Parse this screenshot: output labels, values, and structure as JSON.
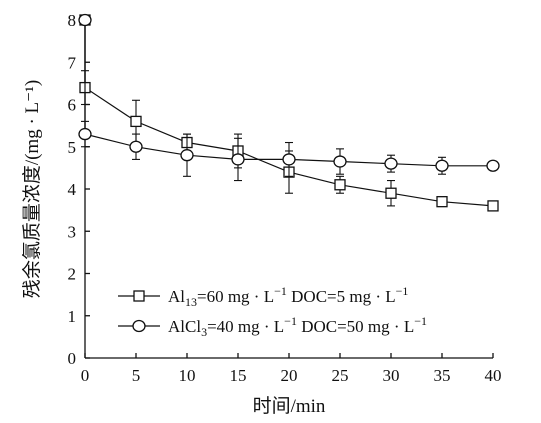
{
  "chart_data": {
    "type": "line",
    "xlabel": "时间/min",
    "ylabel": "残余氯质量浓度/(mg · L⁻¹)",
    "xlim": [
      0,
      40
    ],
    "ylim": [
      0,
      8
    ],
    "xticks": [
      0,
      5,
      10,
      15,
      20,
      25,
      30,
      35,
      40
    ],
    "yticks": [
      0,
      1,
      2,
      3,
      4,
      5,
      6,
      7,
      8
    ],
    "grid": false,
    "legend_position": "bottom-center",
    "series": [
      {
        "name": "Al13=60 mg · L⁻¹ DOC=5 mg · L⁻¹",
        "legend_parts": {
          "pre": "Al",
          "sub": "13",
          "mid": "=60 mg · L",
          "sup": "−1",
          "post": "  DOC=5 mg · L",
          "sup2": "−1"
        },
        "marker": "square",
        "x": [
          0,
          0,
          5,
          10,
          15,
          20,
          25,
          30,
          35,
          40
        ],
        "y": [
          8,
          6.4,
          5.6,
          5.1,
          4.9,
          4.4,
          4.1,
          3.9,
          3.7,
          3.6
        ],
        "error": [
          0,
          0.4,
          0.5,
          0.2,
          0.4,
          0.5,
          0.2,
          0.3,
          0.1,
          0.1
        ]
      },
      {
        "name": "AlCl3=40 mg · L⁻¹ DOC=50 mg · L⁻¹",
        "legend_parts": {
          "pre": "AlCl",
          "sub": "3",
          "mid": "=40 mg · L",
          "sup": "−1",
          "post": "  DOC=50 mg · L",
          "sup2": "−1"
        },
        "marker": "circle",
        "x": [
          0,
          0,
          5,
          10,
          15,
          20,
          25,
          30,
          35,
          40
        ],
        "y": [
          8,
          5.3,
          5.0,
          4.8,
          4.7,
          4.7,
          4.65,
          4.6,
          4.55,
          4.55
        ],
        "error": [
          0,
          0.3,
          0.3,
          0.5,
          0.5,
          0.4,
          0.3,
          0.2,
          0.2,
          0.1
        ]
      }
    ]
  }
}
